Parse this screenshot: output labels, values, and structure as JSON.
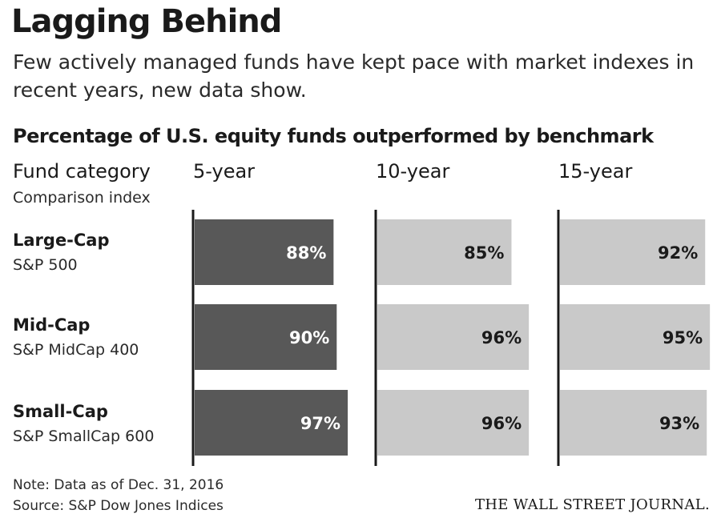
{
  "title": "Lagging Behind",
  "subtitle": "Few actively managed funds have kept pace with market indexes in recent years, new data show.",
  "chart_heading": "Percentage of U.S. equity funds outperformed by benchmark",
  "column_header_category": "Fund category",
  "column_header_index": "Comparison index",
  "note": "Note: Data as of Dec. 31, 2016",
  "source": "Source: S&P Dow Jones Indices",
  "publisher": "THE WALL STREET JOURNAL.",
  "colors": {
    "dark_bar": "#585858",
    "light_bar": "#c9c9c9",
    "axis": "#1a1a1a"
  },
  "chart_data": {
    "type": "bar",
    "orientation": "horizontal",
    "categories": [
      "Large-Cap",
      "Mid-Cap",
      "Small-Cap"
    ],
    "category_indexes": [
      "S&P 500",
      "S&P MidCap 400",
      "S&P SmallCap 600"
    ],
    "series": [
      {
        "name": "5-year",
        "values": [
          88,
          90,
          97
        ],
        "labels": [
          "88%",
          "90%",
          "97%"
        ]
      },
      {
        "name": "10-year",
        "values": [
          85,
          96,
          96
        ],
        "labels": [
          "85%",
          "96%",
          "96%"
        ]
      },
      {
        "name": "15-year",
        "values": [
          92,
          95,
          93
        ],
        "labels": [
          "92%",
          "95%",
          "93%"
        ]
      }
    ],
    "xlim": [
      0,
      100
    ],
    "unit": "%",
    "grid": false,
    "legend": "none"
  }
}
